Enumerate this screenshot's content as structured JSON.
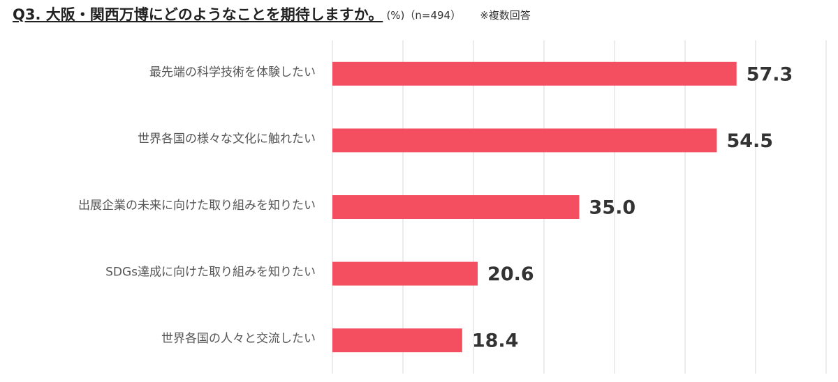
{
  "chart_data": {
    "type": "bar",
    "orientation": "horizontal",
    "title": "Q3. 大阪・関西万博にどのようなことを期待しますか。",
    "subtitle": "(%)（n=494）",
    "note": "※複数回答",
    "categories": [
      "最先端の科学技術を体験したい",
      "世界各国の様々な文化に触れたい",
      "出展企業の未来に向けた取り組みを知りたい",
      "SDGs達成に向けた取り組みを知りたい",
      "世界各国の人々と交流したい"
    ],
    "values": [
      57.3,
      54.5,
      35.0,
      20.6,
      18.4
    ],
    "value_labels": [
      "57.3",
      "54.5",
      "35.0",
      "20.6",
      "18.4"
    ],
    "color": "#f44f60",
    "xlim": [
      0,
      70
    ],
    "xticks": [
      0,
      10,
      20,
      30,
      40,
      50,
      60,
      70
    ],
    "grid": true
  }
}
